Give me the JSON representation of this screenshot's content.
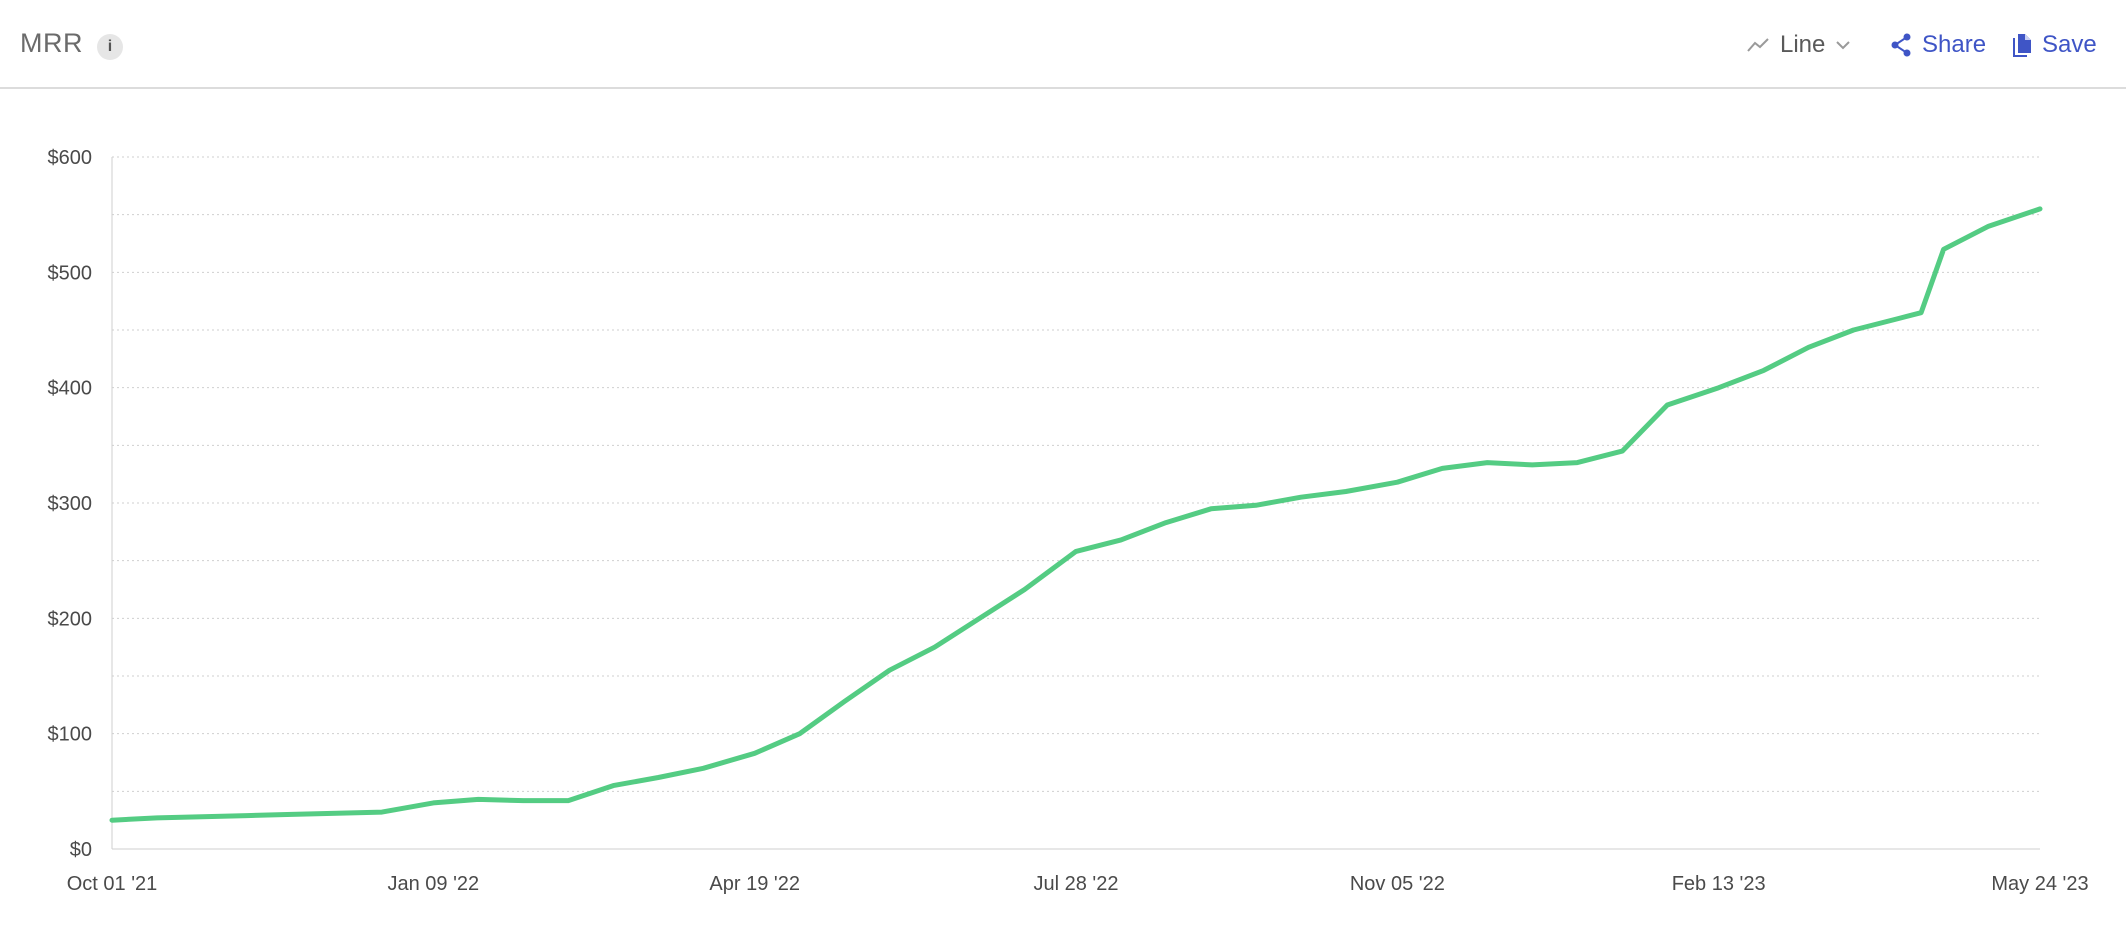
{
  "header": {
    "title": "MRR",
    "info_icon": "info-icon",
    "chart_type_label": "Line",
    "chart_type_icon": "line-chart-icon",
    "share_label": "Share",
    "share_icon": "share-icon",
    "save_label": "Save",
    "save_icon": "document-icon",
    "accent_color": "#3f55c6"
  },
  "chart_data": {
    "type": "line",
    "title": "",
    "xlabel": "",
    "ylabel": "",
    "ylim": [
      0,
      600
    ],
    "y_ticks": [
      "$0",
      "$100",
      "$200",
      "$300",
      "$400",
      "$500",
      "$600"
    ],
    "x_ticks": [
      "Oct 01 '21",
      "Jan 09 '22",
      "Apr 19 '22",
      "Jul 28 '22",
      "Nov 05 '22",
      "Feb 13 '23",
      "May 24 '23"
    ],
    "x_range": [
      "2021-10-01",
      "2023-05-24"
    ],
    "grid": true,
    "line_color": "#54cc83",
    "series": [
      {
        "x": [
          "2021-10-01",
          "2021-10-15",
          "2021-10-29",
          "2021-11-12",
          "2021-11-26",
          "2021-12-10",
          "2021-12-24",
          "2022-01-09",
          "2022-01-23",
          "2022-02-06",
          "2022-02-20",
          "2022-03-06",
          "2022-03-20",
          "2022-04-03",
          "2022-04-19",
          "2022-05-03",
          "2022-05-17",
          "2022-05-31",
          "2022-06-14",
          "2022-06-28",
          "2022-07-12",
          "2022-07-28",
          "2022-08-11",
          "2022-08-25",
          "2022-09-08",
          "2022-09-22",
          "2022-10-06",
          "2022-10-20",
          "2022-11-05",
          "2022-11-19",
          "2022-12-03",
          "2022-12-17",
          "2022-12-31",
          "2023-01-14",
          "2023-01-28",
          "2023-02-13",
          "2023-02-27",
          "2023-03-13",
          "2023-03-27",
          "2023-04-10",
          "2023-04-17",
          "2023-04-24",
          "2023-05-08",
          "2023-05-24"
        ],
        "y": [
          25,
          27,
          28,
          29,
          30,
          31,
          32,
          40,
          43,
          42,
          42,
          55,
          62,
          70,
          83,
          100,
          128,
          155,
          175,
          200,
          225,
          258,
          268,
          283,
          295,
          298,
          305,
          310,
          318,
          330,
          335,
          333,
          335,
          345,
          385,
          400,
          415,
          435,
          450,
          460,
          465,
          520,
          540,
          555
        ]
      }
    ]
  }
}
